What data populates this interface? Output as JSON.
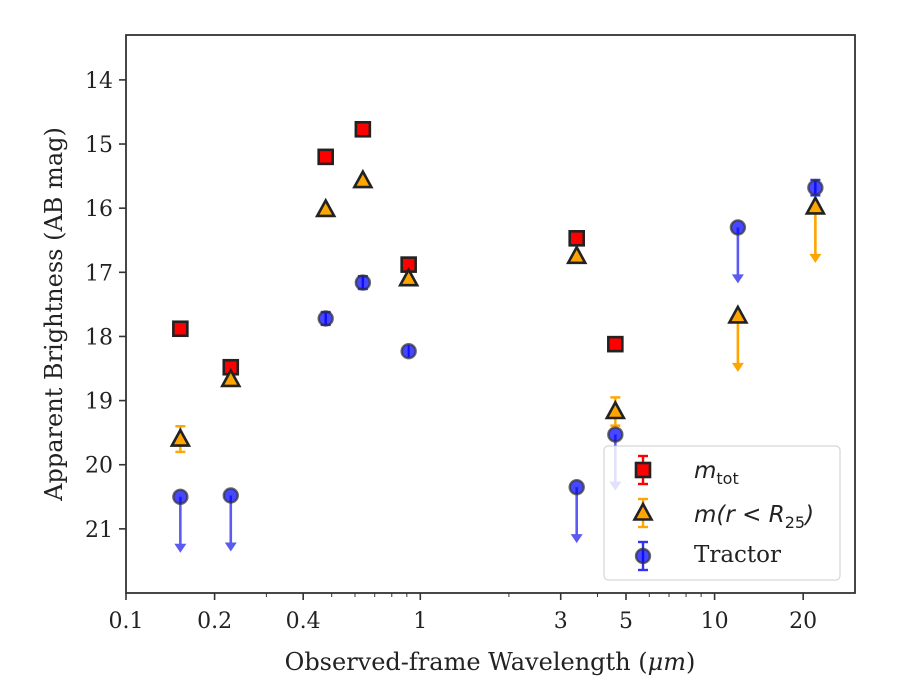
{
  "chart_data": {
    "type": "scatter",
    "title": "",
    "xlabel": "Observed-frame Wavelength (",
    "xlabel_unit": "μm",
    "xlabel_close": ")",
    "ylabel": "Apparent Brightness (AB mag)",
    "xscale": "log",
    "xlim": [
      0.1,
      30
    ],
    "ylim": [
      22.0,
      13.3
    ],
    "y_inverted": true,
    "grid": false,
    "x_ticks": [
      {
        "value": 0.1,
        "label": "0.1"
      },
      {
        "value": 0.2,
        "label": "0.2"
      },
      {
        "value": 0.4,
        "label": "0.4"
      },
      {
        "value": 1,
        "label": "1"
      },
      {
        "value": 3,
        "label": "3"
      },
      {
        "value": 5,
        "label": "5"
      },
      {
        "value": 10,
        "label": "10"
      },
      {
        "value": 20,
        "label": "20"
      }
    ],
    "y_ticks": [
      {
        "value": 14,
        "label": "14"
      },
      {
        "value": 15,
        "label": "15"
      },
      {
        "value": 16,
        "label": "16"
      },
      {
        "value": 17,
        "label": "17"
      },
      {
        "value": 18,
        "label": "18"
      },
      {
        "value": 19,
        "label": "19"
      },
      {
        "value": 20,
        "label": "20"
      },
      {
        "value": 21,
        "label": "21"
      }
    ],
    "legend_position": "lower-right",
    "series": [
      {
        "key": "m_tot",
        "legend_math": "m",
        "legend_sub": "tot",
        "marker": "square",
        "color": "#ff0000",
        "err_color": "#ff0000",
        "points": [
          {
            "x": 0.153,
            "y": 17.88
          },
          {
            "x": 0.227,
            "y": 18.48
          },
          {
            "x": 0.477,
            "y": 15.2
          },
          {
            "x": 0.638,
            "y": 14.77
          },
          {
            "x": 0.913,
            "y": 16.88
          },
          {
            "x": 3.4,
            "y": 16.47
          },
          {
            "x": 4.6,
            "y": 18.12
          }
        ]
      },
      {
        "key": "m_r25",
        "legend_math": "m(r < R",
        "legend_sub": "25",
        "legend_close": ")",
        "marker": "triangle",
        "color": "#ffa500",
        "err_color": "#ffa500",
        "points": [
          {
            "x": 0.153,
            "y": 19.6,
            "yerr": 0.2
          },
          {
            "x": 0.227,
            "y": 18.67
          },
          {
            "x": 0.477,
            "y": 16.02
          },
          {
            "x": 0.638,
            "y": 15.57
          },
          {
            "x": 0.913,
            "y": 17.1
          },
          {
            "x": 3.4,
            "y": 16.75
          },
          {
            "x": 4.6,
            "y": 19.17,
            "yerr": 0.22
          },
          {
            "x": 12.0,
            "y": 17.68,
            "upper_limit": true
          },
          {
            "x": 22.0,
            "y": 15.98,
            "upper_limit": true
          }
        ]
      },
      {
        "key": "tractor",
        "name": "Tractor",
        "marker": "circle",
        "color": "#0000ff",
        "err_color": "#3333ee",
        "points": [
          {
            "x": 0.153,
            "y": 20.5,
            "upper_limit": true
          },
          {
            "x": 0.227,
            "y": 20.48,
            "upper_limit": true
          },
          {
            "x": 0.477,
            "y": 17.72,
            "yerr": 0.1
          },
          {
            "x": 0.638,
            "y": 17.16,
            "yerr": 0.1
          },
          {
            "x": 0.913,
            "y": 18.23
          },
          {
            "x": 3.4,
            "y": 20.35,
            "upper_limit": true
          },
          {
            "x": 4.6,
            "y": 19.53,
            "upper_limit": true
          },
          {
            "x": 12.0,
            "y": 16.3,
            "upper_limit": true
          },
          {
            "x": 22.0,
            "y": 15.68,
            "yerr": 0.12
          }
        ]
      }
    ]
  }
}
